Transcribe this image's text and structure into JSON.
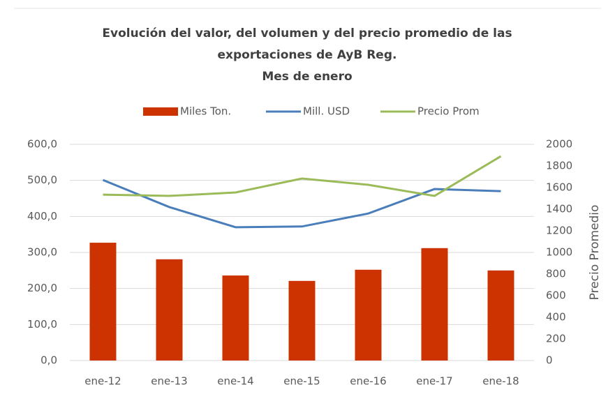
{
  "chart_data": {
    "type": "bar-line",
    "title": [
      "Evolución del valor, del volumen y del precio promedio de las",
      "exportaciones de AyB Reg.",
      "Mes de enero"
    ],
    "y2_label": "Precio Promedio",
    "categories": [
      "ene-12",
      "ene-13",
      "ene-14",
      "ene-15",
      "ene-16",
      "ene-17",
      "ene-18"
    ],
    "series": [
      {
        "name": "Miles Ton.",
        "type": "bar",
        "color": "#cc3300",
        "values": [
          327,
          281,
          236,
          221,
          252,
          312,
          250
        ]
      },
      {
        "name": "Mill. USD",
        "type": "line",
        "color": "#4a7ebb",
        "values": [
          501,
          426,
          370,
          372,
          408,
          476,
          470
        ]
      },
      {
        "name": "Precio Prom",
        "type": "line",
        "axis": "y2",
        "color": "#9bbb59",
        "values": [
          1535,
          1523,
          1555,
          1684,
          1626,
          1523,
          1890
        ]
      }
    ],
    "ylim": [
      0,
      600
    ],
    "yticks": [
      {
        "value": 0,
        "label": "0,0"
      },
      {
        "value": 100,
        "label": "100,0"
      },
      {
        "value": 200,
        "label": "200,0"
      },
      {
        "value": 300,
        "label": "300,0"
      },
      {
        "value": 400,
        "label": "400,0"
      },
      {
        "value": 500,
        "label": "500,0"
      },
      {
        "value": 600,
        "label": "600,0"
      }
    ],
    "y2lim": [
      0,
      2000
    ],
    "y2ticks": [
      0,
      200,
      400,
      600,
      800,
      1000,
      1200,
      1400,
      1600,
      1800,
      2000
    ],
    "grid": true,
    "legend": "top"
  }
}
